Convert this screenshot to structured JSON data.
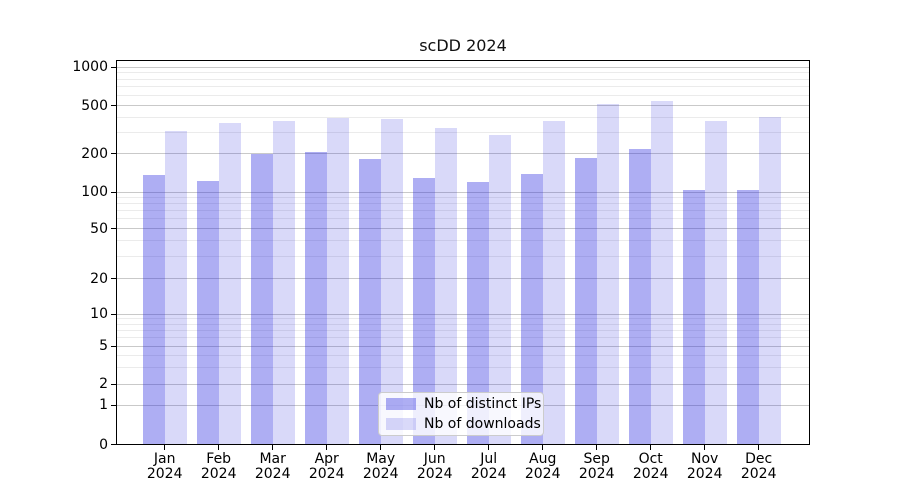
{
  "title": "scDD 2024",
  "chart_data": {
    "type": "bar",
    "title": "scDD 2024",
    "categories": [
      "Jan 2024",
      "Feb 2024",
      "Mar 2024",
      "Apr 2024",
      "May 2024",
      "Jun 2024",
      "Jul 2024",
      "Aug 2024",
      "Sep 2024",
      "Oct 2024",
      "Nov 2024",
      "Dec 2024"
    ],
    "series": [
      {
        "name": "Nb of distinct IPs",
        "color": "#2b2bdf61",
        "values": [
          135,
          123,
          200,
          207,
          181,
          129,
          120,
          138,
          184,
          220,
          103,
          104
        ]
      },
      {
        "name": "Nb of downloads",
        "color": "#2b2bdf2e",
        "values": [
          305,
          355,
          375,
          395,
          390,
          326,
          285,
          374,
          515,
          540,
          371,
          403
        ]
      }
    ],
    "y_ticks": [
      0,
      1,
      2,
      5,
      10,
      20,
      50,
      100,
      200,
      500,
      1000
    ],
    "ylim": [
      0,
      1000
    ],
    "scale": "symlog",
    "grid": true,
    "legend_position": "lower center",
    "colors": {
      "bar_base": "#2b2bdf",
      "grid_major": "#c9c9c9",
      "grid_minor": "#ebebeb",
      "axis": "#000000"
    }
  }
}
